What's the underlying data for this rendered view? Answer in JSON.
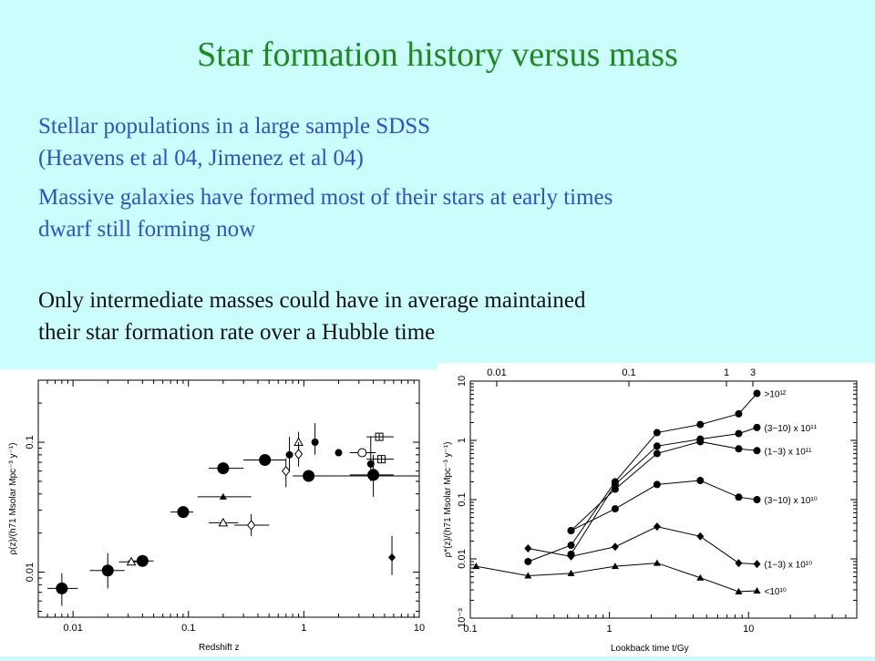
{
  "slide": {
    "title": "Star formation history versus mass",
    "blue_lines": [
      "Stellar populations in a large sample SDSS",
      "(Heavens et al 04, Jimenez et al 04)",
      "Massive galaxies have formed most of their stars at early times",
      "dwarf still forming now"
    ],
    "black_lines": [
      "Only intermediate masses could have in average maintained",
      "their star formation rate over a Hubble time"
    ]
  },
  "chart_data": [
    {
      "type": "scatter",
      "xlabel": "Redshift z",
      "ylabel": "ρ(z)/(h71 Msolar Mpc⁻³ y⁻¹)",
      "xscale": "log",
      "yscale": "log",
      "xlim": [
        0.005,
        10
      ],
      "ylim": [
        0.0045,
        0.3
      ],
      "x_ticks": [
        "0.01",
        "0.1",
        "1",
        "10"
      ],
      "y_ticks": [
        "0.01",
        "0.1"
      ],
      "series": [
        {
          "marker": "big-circle",
          "points": [
            {
              "x": 0.008,
              "y": 0.0075,
              "xl": 0.006,
              "xh": 0.011,
              "yl": 0.0055,
              "yh": 0.0098
            },
            {
              "x": 0.02,
              "y": 0.0103,
              "xl": 0.014,
              "xh": 0.028,
              "yl": 0.0075,
              "yh": 0.014
            },
            {
              "x": 0.04,
              "y": 0.0122,
              "xl": 0.03,
              "xh": 0.05
            },
            {
              "x": 0.09,
              "y": 0.029,
              "xl": 0.07,
              "xh": 0.11
            },
            {
              "x": 0.2,
              "y": 0.063,
              "xl": 0.15,
              "xh": 0.3
            },
            {
              "x": 0.46,
              "y": 0.073,
              "xl": 0.3,
              "xh": 0.7
            },
            {
              "x": 1.1,
              "y": 0.055,
              "xl": 0.8,
              "xh": 10
            },
            {
              "x": 4.0,
              "y": 0.056,
              "xl": 2.5,
              "xh": 6,
              "yl": 0.038,
              "yh": 0.08
            }
          ]
        },
        {
          "marker": "small-circle",
          "points": [
            {
              "x": 0.75,
              "y": 0.08,
              "yl": 0.06,
              "yh": 0.11
            },
            {
              "x": 1.25,
              "y": 0.1,
              "yl": 0.08,
              "yh": 0.14
            },
            {
              "x": 2.0,
              "y": 0.083
            },
            {
              "x": 3.8,
              "y": 0.068,
              "yl": 0.05,
              "yh": 0.11
            }
          ]
        },
        {
          "marker": "triangle",
          "points": [
            {
              "x": 0.2,
              "y": 0.038,
              "xl": 0.12,
              "xh": 0.35
            }
          ]
        },
        {
          "marker": "open-triangle",
          "points": [
            {
              "x": 0.032,
              "y": 0.012,
              "xl": 0.025,
              "xh": 0.04
            },
            {
              "x": 0.2,
              "y": 0.024,
              "xl": 0.15,
              "xh": 0.27
            },
            {
              "x": 0.9,
              "y": 0.1,
              "yl": 0.085,
              "yh": 0.12
            }
          ]
        },
        {
          "marker": "open-diamond",
          "points": [
            {
              "x": 0.35,
              "y": 0.023,
              "xl": 0.25,
              "xh": 0.5,
              "yl": 0.019,
              "yh": 0.028
            },
            {
              "x": 0.7,
              "y": 0.06,
              "yl": 0.045,
              "yh": 0.075
            },
            {
              "x": 0.9,
              "y": 0.081,
              "yl": 0.065,
              "yh": 0.1
            }
          ]
        },
        {
          "marker": "open-circle",
          "points": [
            {
              "x": 3.2,
              "y": 0.083,
              "xl": 2.5,
              "xh": 4.2
            }
          ]
        },
        {
          "marker": "open-square-plus",
          "points": [
            {
              "x": 4.5,
              "y": 0.11,
              "xl": 3.5,
              "xh": 6
            },
            {
              "x": 4.7,
              "y": 0.074,
              "xl": 3.5,
              "xh": 6
            }
          ]
        },
        {
          "marker": "diamond",
          "points": [
            {
              "x": 5.8,
              "y": 0.013,
              "yl": 0.0095,
              "yh": 0.019
            }
          ]
        }
      ]
    },
    {
      "type": "line",
      "xlabel": "Lookback time t/Gy",
      "ylabel": "ρ*(z)/(h71 Msolar Mpc⁻³ y⁻¹)",
      "top_axis_ticks": [
        "0.01",
        "0.1",
        "1",
        "3"
      ],
      "x_ticks": [
        "0.1",
        "1",
        "10"
      ],
      "y_ticks": [
        "10",
        "1",
        "0.1",
        "0.01",
        "10⁻³"
      ],
      "xscale": "log",
      "yscale": "log",
      "xlim": [
        0.1,
        60
      ],
      "ylim": [
        0.001,
        10
      ],
      "series": [
        {
          "name": ">10¹²",
          "marker": "circle",
          "points": [
            [
              0.26,
              0.009
            ],
            [
              0.53,
              0.017
            ],
            [
              1.1,
              0.2
            ],
            [
              2.2,
              1.35
            ],
            [
              4.5,
              1.85
            ],
            [
              8.5,
              2.8
            ],
            [
              11.5,
              6.2
            ]
          ]
        },
        {
          "name": "(3−10) x 10¹¹",
          "marker": "circle",
          "points": [
            [
              0.53,
              0.012
            ],
            [
              1.1,
              0.18
            ],
            [
              2.2,
              0.8
            ],
            [
              4.5,
              1.05
            ],
            [
              8.5,
              1.3
            ],
            [
              11.5,
              1.65
            ]
          ]
        },
        {
          "name": "(1−3) x 10¹¹",
          "marker": "circle",
          "points": [
            [
              0.53,
              0.03
            ],
            [
              1.1,
              0.15
            ],
            [
              2.2,
              0.6
            ],
            [
              4.5,
              0.95
            ],
            [
              8.5,
              0.72
            ],
            [
              11.5,
              0.67
            ]
          ]
        },
        {
          "name": "(3−10) x 10¹⁰",
          "marker": "circle",
          "points": [
            [
              0.53,
              0.03
            ],
            [
              1.1,
              0.07
            ],
            [
              2.2,
              0.18
            ],
            [
              4.5,
              0.21
            ],
            [
              8.5,
              0.11
            ],
            [
              11.5,
              0.1
            ]
          ]
        },
        {
          "name": "(1−3) x 10¹⁰",
          "marker": "diamond",
          "points": [
            [
              0.26,
              0.015
            ],
            [
              0.53,
              0.011
            ],
            [
              1.1,
              0.016
            ],
            [
              2.2,
              0.035
            ],
            [
              4.5,
              0.024
            ],
            [
              8.5,
              0.0085
            ],
            [
              11.5,
              0.0082
            ]
          ]
        },
        {
          "name": "<10¹⁰",
          "marker": "triangle",
          "points": [
            [
              0.11,
              0.0075
            ],
            [
              0.26,
              0.0052
            ],
            [
              0.53,
              0.0057
            ],
            [
              1.1,
              0.0075
            ],
            [
              2.2,
              0.0085
            ],
            [
              4.5,
              0.0048
            ],
            [
              8.5,
              0.0028
            ],
            [
              11.5,
              0.0029
            ]
          ]
        }
      ]
    }
  ]
}
